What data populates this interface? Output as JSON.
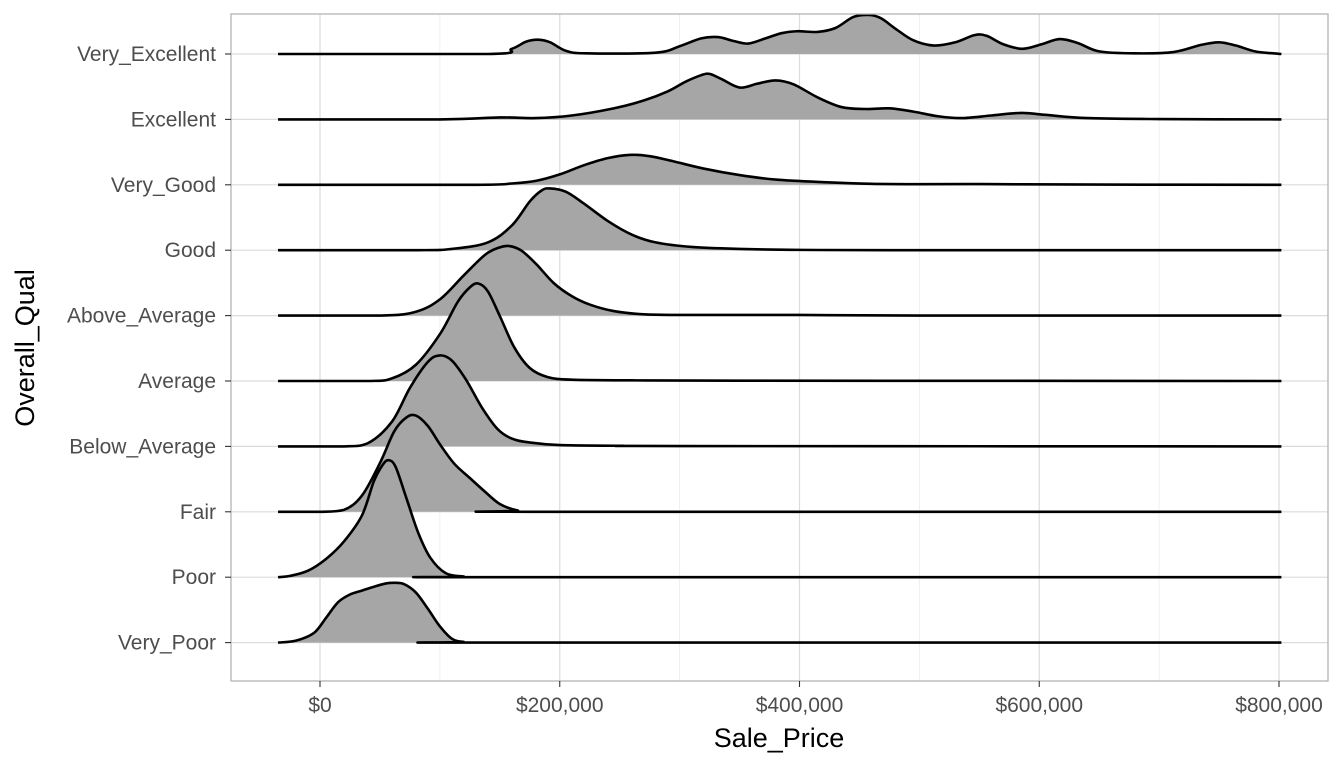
{
  "chart_data": {
    "type": "ridgeline",
    "title": "",
    "xlabel": "Sale_Price",
    "ylabel": "Overall_Qual",
    "xlim": [
      -40000,
      802000
    ],
    "x_ticks": [
      0,
      200000,
      400000,
      600000,
      800000
    ],
    "x_tick_labels": [
      "$0",
      "$200,000",
      "$400,000",
      "$600,000",
      "$800,000"
    ],
    "grid": true,
    "fill_color": "#a6a6a6",
    "line_color": "#000000",
    "categories": [
      "Very_Poor",
      "Poor",
      "Fair",
      "Below_Average",
      "Average",
      "Above_Average",
      "Good",
      "Very_Good",
      "Excellent",
      "Very_Excellent"
    ],
    "series": [
      {
        "category": "Very_Poor",
        "points": [
          [
            -35000,
            0.0
          ],
          [
            -20000,
            0.03
          ],
          [
            -5000,
            0.15
          ],
          [
            5000,
            0.38
          ],
          [
            15000,
            0.62
          ],
          [
            25000,
            0.74
          ],
          [
            35000,
            0.8
          ],
          [
            45000,
            0.86
          ],
          [
            55000,
            0.91
          ],
          [
            62000,
            0.92
          ],
          [
            70000,
            0.9
          ],
          [
            80000,
            0.77
          ],
          [
            90000,
            0.52
          ],
          [
            100000,
            0.25
          ],
          [
            110000,
            0.06
          ],
          [
            120000,
            0.01
          ],
          [
            135000,
            0.0
          ],
          [
            802000,
            0.0
          ]
        ]
      },
      {
        "category": "Poor",
        "points": [
          [
            -35000,
            0.0
          ],
          [
            -25000,
            0.02
          ],
          [
            -10000,
            0.1
          ],
          [
            5000,
            0.28
          ],
          [
            20000,
            0.55
          ],
          [
            35000,
            0.95
          ],
          [
            45000,
            1.48
          ],
          [
            52000,
            1.72
          ],
          [
            57000,
            1.8
          ],
          [
            63000,
            1.7
          ],
          [
            72000,
            1.22
          ],
          [
            82000,
            0.68
          ],
          [
            92000,
            0.3
          ],
          [
            105000,
            0.06
          ],
          [
            120000,
            0.01
          ],
          [
            130000,
            0.0
          ],
          [
            802000,
            0.0
          ]
        ]
      },
      {
        "category": "Fair",
        "points": [
          [
            -35000,
            0.0
          ],
          [
            0,
            0.0
          ],
          [
            20000,
            0.03
          ],
          [
            35000,
            0.25
          ],
          [
            50000,
            0.75
          ],
          [
            62000,
            1.24
          ],
          [
            72000,
            1.45
          ],
          [
            80000,
            1.48
          ],
          [
            90000,
            1.32
          ],
          [
            100000,
            1.04
          ],
          [
            112000,
            0.74
          ],
          [
            125000,
            0.52
          ],
          [
            137000,
            0.32
          ],
          [
            150000,
            0.12
          ],
          [
            165000,
            0.02
          ],
          [
            180000,
            0.0
          ],
          [
            802000,
            0.0
          ]
        ]
      },
      {
        "category": "Below_Average",
        "points": [
          [
            -35000,
            0.0
          ],
          [
            20000,
            0.0
          ],
          [
            40000,
            0.05
          ],
          [
            60000,
            0.38
          ],
          [
            75000,
            0.9
          ],
          [
            90000,
            1.3
          ],
          [
            100000,
            1.4
          ],
          [
            110000,
            1.32
          ],
          [
            122000,
            1.02
          ],
          [
            135000,
            0.6
          ],
          [
            148000,
            0.27
          ],
          [
            160000,
            0.12
          ],
          [
            175000,
            0.06
          ],
          [
            200000,
            0.02
          ],
          [
            250000,
            0.01
          ],
          [
            300000,
            0.005
          ],
          [
            802000,
            0.0
          ]
        ]
      },
      {
        "category": "Average",
        "points": [
          [
            -35000,
            0.0
          ],
          [
            40000,
            0.0
          ],
          [
            60000,
            0.04
          ],
          [
            80000,
            0.25
          ],
          [
            100000,
            0.72
          ],
          [
            115000,
            1.22
          ],
          [
            125000,
            1.44
          ],
          [
            132000,
            1.5
          ],
          [
            140000,
            1.38
          ],
          [
            150000,
            1.0
          ],
          [
            162000,
            0.52
          ],
          [
            175000,
            0.2
          ],
          [
            190000,
            0.06
          ],
          [
            210000,
            0.02
          ],
          [
            260000,
            0.01
          ],
          [
            350000,
            0.005
          ],
          [
            802000,
            0.0
          ]
        ]
      },
      {
        "category": "Above_Average",
        "points": [
          [
            -35000,
            0.0
          ],
          [
            50000,
            0.0
          ],
          [
            80000,
            0.06
          ],
          [
            100000,
            0.25
          ],
          [
            120000,
            0.62
          ],
          [
            138000,
            0.94
          ],
          [
            150000,
            1.05
          ],
          [
            158000,
            1.07
          ],
          [
            168000,
            1.0
          ],
          [
            180000,
            0.8
          ],
          [
            195000,
            0.5
          ],
          [
            210000,
            0.3
          ],
          [
            225000,
            0.17
          ],
          [
            245000,
            0.07
          ],
          [
            270000,
            0.02
          ],
          [
            300000,
            0.01
          ],
          [
            400000,
            0.01
          ],
          [
            500000,
            0.0
          ],
          [
            802000,
            0.0
          ]
        ]
      },
      {
        "category": "Good",
        "points": [
          [
            -35000,
            0.0
          ],
          [
            80000,
            0.0
          ],
          [
            110000,
            0.02
          ],
          [
            140000,
            0.12
          ],
          [
            160000,
            0.38
          ],
          [
            175000,
            0.75
          ],
          [
            185000,
            0.92
          ],
          [
            192000,
            0.95
          ],
          [
            205000,
            0.9
          ],
          [
            220000,
            0.72
          ],
          [
            240000,
            0.45
          ],
          [
            260000,
            0.24
          ],
          [
            280000,
            0.12
          ],
          [
            310000,
            0.05
          ],
          [
            350000,
            0.02
          ],
          [
            400000,
            0.005
          ],
          [
            500000,
            0.0
          ],
          [
            802000,
            0.0
          ]
        ]
      },
      {
        "category": "Very_Good",
        "points": [
          [
            -35000,
            0.0
          ],
          [
            130000,
            0.0
          ],
          [
            160000,
            0.02
          ],
          [
            180000,
            0.06
          ],
          [
            200000,
            0.16
          ],
          [
            220000,
            0.3
          ],
          [
            240000,
            0.41
          ],
          [
            258000,
            0.46
          ],
          [
            275000,
            0.44
          ],
          [
            295000,
            0.36
          ],
          [
            320000,
            0.25
          ],
          [
            350000,
            0.15
          ],
          [
            380000,
            0.08
          ],
          [
            420000,
            0.04
          ],
          [
            460000,
            0.015
          ],
          [
            500000,
            0.01
          ],
          [
            540000,
            0.012
          ],
          [
            580000,
            0.008
          ],
          [
            650000,
            0.003
          ],
          [
            802000,
            0.0
          ]
        ]
      },
      {
        "category": "Excellent",
        "points": [
          [
            -35000,
            0.0
          ],
          [
            100000,
            0.0
          ],
          [
            150000,
            0.03
          ],
          [
            180000,
            0.02
          ],
          [
            210000,
            0.06
          ],
          [
            245000,
            0.17
          ],
          [
            270000,
            0.29
          ],
          [
            290000,
            0.43
          ],
          [
            305000,
            0.58
          ],
          [
            318000,
            0.68
          ],
          [
            325000,
            0.7
          ],
          [
            335000,
            0.62
          ],
          [
            350000,
            0.49
          ],
          [
            365000,
            0.55
          ],
          [
            380000,
            0.6
          ],
          [
            395000,
            0.54
          ],
          [
            415000,
            0.34
          ],
          [
            435000,
            0.19
          ],
          [
            455000,
            0.16
          ],
          [
            475000,
            0.17
          ],
          [
            495000,
            0.12
          ],
          [
            515000,
            0.05
          ],
          [
            535000,
            0.02
          ],
          [
            560000,
            0.06
          ],
          [
            585000,
            0.1
          ],
          [
            605000,
            0.07
          ],
          [
            640000,
            0.02
          ],
          [
            700000,
            0.005
          ],
          [
            802000,
            0.0
          ]
        ]
      },
      {
        "category": "Very_Excellent",
        "points": [
          [
            -35000,
            0.0
          ],
          [
            140000,
            0.0
          ],
          [
            160000,
            0.08
          ],
          [
            172000,
            0.19
          ],
          [
            182000,
            0.22
          ],
          [
            192000,
            0.18
          ],
          [
            205000,
            0.05
          ],
          [
            222000,
            0.01
          ],
          [
            280000,
            0.02
          ],
          [
            300000,
            0.12
          ],
          [
            318000,
            0.24
          ],
          [
            332000,
            0.26
          ],
          [
            345000,
            0.2
          ],
          [
            357000,
            0.16
          ],
          [
            370000,
            0.23
          ],
          [
            385000,
            0.32
          ],
          [
            398000,
            0.35
          ],
          [
            415000,
            0.34
          ],
          [
            430000,
            0.4
          ],
          [
            445000,
            0.57
          ],
          [
            458000,
            0.6
          ],
          [
            468000,
            0.55
          ],
          [
            480000,
            0.39
          ],
          [
            495000,
            0.21
          ],
          [
            512000,
            0.13
          ],
          [
            530000,
            0.18
          ],
          [
            546000,
            0.29
          ],
          [
            556000,
            0.28
          ],
          [
            570000,
            0.15
          ],
          [
            586000,
            0.08
          ],
          [
            602000,
            0.15
          ],
          [
            617000,
            0.23
          ],
          [
            632000,
            0.17
          ],
          [
            650000,
            0.04
          ],
          [
            680000,
            0.01
          ],
          [
            712000,
            0.03
          ],
          [
            735000,
            0.14
          ],
          [
            750000,
            0.18
          ],
          [
            764000,
            0.13
          ],
          [
            780000,
            0.04
          ],
          [
            795000,
            0.01
          ],
          [
            802000,
            0.0
          ]
        ]
      }
    ]
  }
}
